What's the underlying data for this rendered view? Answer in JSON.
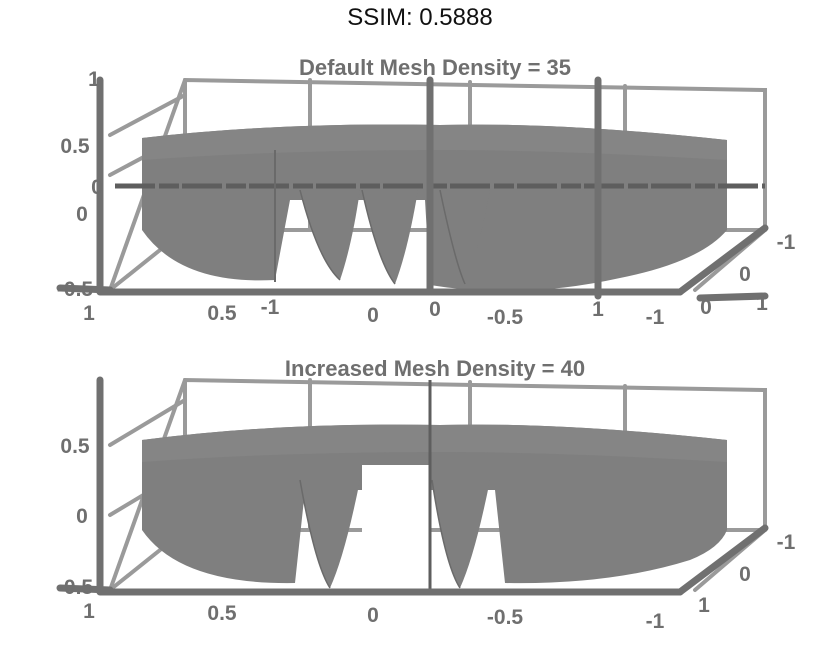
{
  "figure": {
    "title": "SSIM: 0.5888"
  },
  "chart_data": [
    {
      "type": "surface",
      "title": "Default Mesh Density = 35",
      "z_ticks": [
        "1",
        "0.5",
        "0",
        "-0.5"
      ],
      "x_ticks": [
        "1",
        "0.5",
        "0",
        "-0.5",
        "-1"
      ],
      "y_ticks": [
        "-1",
        "0",
        "1"
      ],
      "extra_tick_labels": [
        "-1",
        "0",
        "1",
        "0",
        "0"
      ],
      "grid": true
    },
    {
      "type": "surface",
      "title": "Increased Mesh Density = 40",
      "z_ticks": [
        "0.5",
        "0",
        "-0.5"
      ],
      "x_ticks": [
        "1",
        "0.5",
        "0",
        "-0.5",
        "-1"
      ],
      "y_ticks": [
        "-1",
        "0",
        "1"
      ],
      "grid": true
    }
  ]
}
